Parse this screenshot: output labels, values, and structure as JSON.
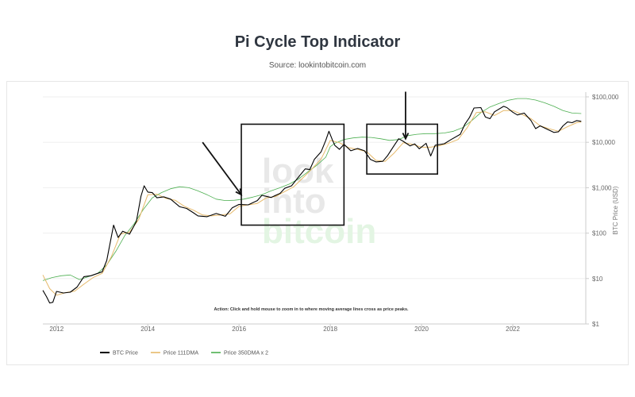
{
  "header": {
    "title": "Pi Cycle Top Indicator",
    "subtitle": "Source: lookintobitcoin.com"
  },
  "watermark": [
    "look",
    "into",
    "bitcoin"
  ],
  "annotation": "Action: Click and hold mouse to zoom in to where moving average lines cross as price peaks.",
  "colors": {
    "price": "#000000",
    "ma111": "#e6b96a",
    "ma350x2": "#4caf50",
    "watermark_grey": "#e8e8e8",
    "watermark_green": "#e3f5e3"
  },
  "chart_data": {
    "type": "line",
    "title": "Pi Cycle Top Indicator",
    "xlabel": "",
    "ylabel": "BTC Price (USD)",
    "yscale": "log",
    "xlim": [
      2011.7,
      2023.6
    ],
    "ylim": [
      1,
      100000
    ],
    "x_ticks": [
      {
        "value": 2012,
        "label": "2012"
      },
      {
        "value": 2014,
        "label": "2014"
      },
      {
        "value": 2016,
        "label": "2016"
      },
      {
        "value": 2018,
        "label": "2018"
      },
      {
        "value": 2020,
        "label": "2020"
      },
      {
        "value": 2022,
        "label": "2022"
      }
    ],
    "y_ticks": [
      {
        "value": 1,
        "label": "$1"
      },
      {
        "value": 10,
        "label": "$10"
      },
      {
        "value": 100,
        "label": "$100"
      },
      {
        "value": 1000,
        "label": "$1,000"
      },
      {
        "value": 10000,
        "label": "$10,000"
      },
      {
        "value": 100000,
        "label": "$100,000"
      }
    ],
    "grid": true,
    "legend": "bottom-left",
    "series": [
      {
        "name": "BTC Price",
        "color": "#000000",
        "points": [
          [
            2011.7,
            5.5
          ],
          [
            2011.78,
            4.0
          ],
          [
            2011.85,
            2.9
          ],
          [
            2011.92,
            3.0
          ],
          [
            2012.0,
            5.2
          ],
          [
            2012.15,
            4.8
          ],
          [
            2012.3,
            5.0
          ],
          [
            2012.45,
            6.5
          ],
          [
            2012.6,
            11.0
          ],
          [
            2012.75,
            11.5
          ],
          [
            2012.9,
            13.0
          ],
          [
            2013.0,
            14.0
          ],
          [
            2013.1,
            25.0
          ],
          [
            2013.25,
            150.0
          ],
          [
            2013.35,
            80.0
          ],
          [
            2013.45,
            110.0
          ],
          [
            2013.6,
            95.0
          ],
          [
            2013.75,
            180.0
          ],
          [
            2013.85,
            650.0
          ],
          [
            2013.92,
            1100.0
          ],
          [
            2014.0,
            800.0
          ],
          [
            2014.1,
            780.0
          ],
          [
            2014.2,
            600.0
          ],
          [
            2014.35,
            630.0
          ],
          [
            2014.5,
            560.0
          ],
          [
            2014.7,
            380.0
          ],
          [
            2014.85,
            350.0
          ],
          [
            2015.0,
            280.0
          ],
          [
            2015.1,
            240.0
          ],
          [
            2015.3,
            230.0
          ],
          [
            2015.5,
            270.0
          ],
          [
            2015.7,
            235.0
          ],
          [
            2015.85,
            360.0
          ],
          [
            2016.0,
            430.0
          ],
          [
            2016.2,
            420.0
          ],
          [
            2016.4,
            520.0
          ],
          [
            2016.5,
            680.0
          ],
          [
            2016.7,
            610.0
          ],
          [
            2016.9,
            750.0
          ],
          [
            2017.0,
            970.0
          ],
          [
            2017.15,
            1100.0
          ],
          [
            2017.3,
            1700.0
          ],
          [
            2017.45,
            2600.0
          ],
          [
            2017.55,
            2500.0
          ],
          [
            2017.65,
            4200.0
          ],
          [
            2017.8,
            6200.0
          ],
          [
            2017.9,
            11000.0
          ],
          [
            2017.97,
            17500.0
          ],
          [
            2018.05,
            11000.0
          ],
          [
            2018.1,
            8500.0
          ],
          [
            2018.2,
            7000.0
          ],
          [
            2018.3,
            9000.0
          ],
          [
            2018.45,
            6500.0
          ],
          [
            2018.6,
            7300.0
          ],
          [
            2018.75,
            6500.0
          ],
          [
            2018.88,
            4200.0
          ],
          [
            2019.0,
            3700.0
          ],
          [
            2019.15,
            3800.0
          ],
          [
            2019.25,
            5000.0
          ],
          [
            2019.4,
            8500.0
          ],
          [
            2019.5,
            12000.0
          ],
          [
            2019.6,
            10500.0
          ],
          [
            2019.75,
            8300.0
          ],
          [
            2019.85,
            9200.0
          ],
          [
            2019.95,
            7200.0
          ],
          [
            2020.1,
            9500.0
          ],
          [
            2020.2,
            5000.0
          ],
          [
            2020.3,
            8600.0
          ],
          [
            2020.5,
            9300.0
          ],
          [
            2020.65,
            11500.0
          ],
          [
            2020.85,
            15000.0
          ],
          [
            2020.95,
            25000.0
          ],
          [
            2021.05,
            35000.0
          ],
          [
            2021.15,
            57000.0
          ],
          [
            2021.3,
            58000.0
          ],
          [
            2021.4,
            36000.0
          ],
          [
            2021.5,
            33000.0
          ],
          [
            2021.6,
            47000.0
          ],
          [
            2021.8,
            62000.0
          ],
          [
            2021.87,
            58000.0
          ],
          [
            2022.0,
            46000.0
          ],
          [
            2022.1,
            40000.0
          ],
          [
            2022.25,
            44000.0
          ],
          [
            2022.4,
            30000.0
          ],
          [
            2022.5,
            20000.0
          ],
          [
            2022.6,
            23000.0
          ],
          [
            2022.75,
            19500.0
          ],
          [
            2022.9,
            16500.0
          ],
          [
            2023.0,
            17000.0
          ],
          [
            2023.1,
            23000.0
          ],
          [
            2023.2,
            28000.0
          ],
          [
            2023.3,
            27000.0
          ],
          [
            2023.4,
            30000.0
          ],
          [
            2023.5,
            29000.0
          ]
        ]
      },
      {
        "name": "Price 111DMA",
        "color": "#e6b96a",
        "points": [
          [
            2011.7,
            12.0
          ],
          [
            2011.85,
            6.0
          ],
          [
            2012.0,
            4.3
          ],
          [
            2012.2,
            4.9
          ],
          [
            2012.4,
            5.3
          ],
          [
            2012.6,
            7.5
          ],
          [
            2012.8,
            10.5
          ],
          [
            2013.0,
            13.0
          ],
          [
            2013.2,
            30.0
          ],
          [
            2013.4,
            95.0
          ],
          [
            2013.6,
            105.0
          ],
          [
            2013.8,
            200.0
          ],
          [
            2014.0,
            700.0
          ],
          [
            2014.2,
            720.0
          ],
          [
            2014.4,
            580.0
          ],
          [
            2014.6,
            530.0
          ],
          [
            2014.8,
            390.0
          ],
          [
            2015.0,
            320.0
          ],
          [
            2015.2,
            250.0
          ],
          [
            2015.4,
            240.0
          ],
          [
            2015.6,
            250.0
          ],
          [
            2015.8,
            265.0
          ],
          [
            2016.0,
            390.0
          ],
          [
            2016.2,
            420.0
          ],
          [
            2016.4,
            450.0
          ],
          [
            2016.6,
            600.0
          ],
          [
            2016.8,
            640.0
          ],
          [
            2017.0,
            820.0
          ],
          [
            2017.2,
            1050.0
          ],
          [
            2017.4,
            1650.0
          ],
          [
            2017.6,
            2600.0
          ],
          [
            2017.8,
            4300.0
          ],
          [
            2018.0,
            11000.0
          ],
          [
            2018.2,
            9800.0
          ],
          [
            2018.4,
            7600.0
          ],
          [
            2018.6,
            7000.0
          ],
          [
            2018.8,
            6200.0
          ],
          [
            2019.0,
            4000.0
          ],
          [
            2019.2,
            3800.0
          ],
          [
            2019.4,
            5800.0
          ],
          [
            2019.6,
            9800.0
          ],
          [
            2019.8,
            9000.0
          ],
          [
            2020.0,
            7800.0
          ],
          [
            2020.2,
            7800.0
          ],
          [
            2020.4,
            8400.0
          ],
          [
            2020.6,
            9600.0
          ],
          [
            2020.8,
            11500.0
          ],
          [
            2021.0,
            21000.0
          ],
          [
            2021.2,
            45000.0
          ],
          [
            2021.4,
            47000.0
          ],
          [
            2021.6,
            39000.0
          ],
          [
            2021.8,
            50000.0
          ],
          [
            2022.0,
            50000.0
          ],
          [
            2022.2,
            41000.0
          ],
          [
            2022.4,
            33000.0
          ],
          [
            2022.6,
            23000.0
          ],
          [
            2022.8,
            19800.0
          ],
          [
            2023.0,
            17500.0
          ],
          [
            2023.2,
            22000.0
          ],
          [
            2023.4,
            27000.0
          ],
          [
            2023.5,
            28000.0
          ]
        ]
      },
      {
        "name": "Price 350DMA x 2",
        "color": "#4caf50",
        "points": [
          [
            2011.7,
            9.0
          ],
          [
            2011.9,
            10.5
          ],
          [
            2012.1,
            11.5
          ],
          [
            2012.3,
            12.0
          ],
          [
            2012.5,
            9.5
          ],
          [
            2012.7,
            11.0
          ],
          [
            2012.9,
            13.0
          ],
          [
            2013.1,
            20.0
          ],
          [
            2013.3,
            40.0
          ],
          [
            2013.5,
            90.0
          ],
          [
            2013.7,
            160.0
          ],
          [
            2013.9,
            330.0
          ],
          [
            2014.1,
            600.0
          ],
          [
            2014.3,
            780.0
          ],
          [
            2014.5,
            950.0
          ],
          [
            2014.7,
            1050.0
          ],
          [
            2014.9,
            1000.0
          ],
          [
            2015.1,
            850.0
          ],
          [
            2015.3,
            700.0
          ],
          [
            2015.5,
            560.0
          ],
          [
            2015.7,
            520.0
          ],
          [
            2015.9,
            530.0
          ],
          [
            2016.1,
            560.0
          ],
          [
            2016.3,
            620.0
          ],
          [
            2016.5,
            700.0
          ],
          [
            2016.7,
            850.0
          ],
          [
            2016.9,
            1000.0
          ],
          [
            2017.1,
            1200.0
          ],
          [
            2017.3,
            1550.0
          ],
          [
            2017.5,
            2200.0
          ],
          [
            2017.7,
            3100.0
          ],
          [
            2017.9,
            4700.0
          ],
          [
            2018.0,
            8000.0
          ],
          [
            2018.1,
            9500.0
          ],
          [
            2018.3,
            11500.0
          ],
          [
            2018.5,
            12500.0
          ],
          [
            2018.7,
            13000.0
          ],
          [
            2018.9,
            12800.0
          ],
          [
            2019.1,
            12000.0
          ],
          [
            2019.3,
            11000.0
          ],
          [
            2019.5,
            11500.0
          ],
          [
            2019.7,
            14000.0
          ],
          [
            2019.9,
            15000.0
          ],
          [
            2020.1,
            15500.0
          ],
          [
            2020.3,
            15500.0
          ],
          [
            2020.5,
            16000.0
          ],
          [
            2020.7,
            17500.0
          ],
          [
            2020.9,
            21000.0
          ],
          [
            2021.1,
            30000.0
          ],
          [
            2021.3,
            45000.0
          ],
          [
            2021.5,
            60000.0
          ],
          [
            2021.7,
            72000.0
          ],
          [
            2021.9,
            84000.0
          ],
          [
            2022.1,
            92000.0
          ],
          [
            2022.3,
            92000.0
          ],
          [
            2022.5,
            85000.0
          ],
          [
            2022.7,
            74000.0
          ],
          [
            2022.9,
            62000.0
          ],
          [
            2023.1,
            50000.0
          ],
          [
            2023.3,
            44000.0
          ],
          [
            2023.5,
            43000.0
          ]
        ]
      }
    ],
    "overlays": {
      "boxes": [
        {
          "x0": 2016.05,
          "x1": 2018.3,
          "y0": 150,
          "y1": 25000
        },
        {
          "x0": 2018.8,
          "x1": 2020.35,
          "y0": 2000,
          "y1": 25000
        }
      ],
      "arrows": [
        {
          "x0": 2015.2,
          "y0": 10000,
          "x1": 2016.05,
          "y1": 700
        },
        {
          "x0": 2019.65,
          "y0": 130000,
          "x1": 2019.65,
          "y1": 12000
        }
      ]
    }
  }
}
